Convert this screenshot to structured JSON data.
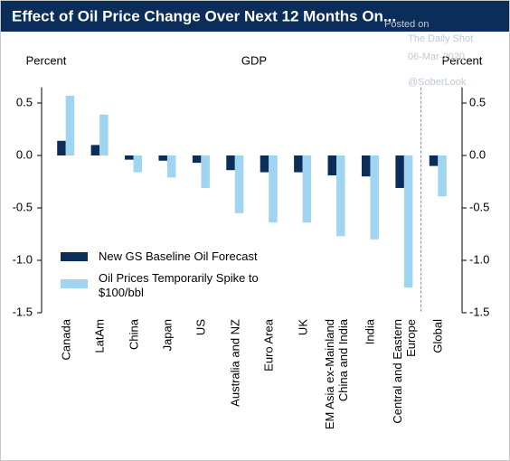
{
  "chart_data": {
    "type": "bar",
    "title": "Effect of Oil Price Change Over Next 12 Months On...",
    "watermark": [
      "Posted on",
      "The Daily Shot",
      "06-Mar-2020",
      "@SoberLook"
    ],
    "x_label": "GDP",
    "y_label": "Percent",
    "y2_label": "Percent",
    "categories": [
      "Canada",
      "LatAm",
      "China",
      "Japan",
      "US",
      "Australia and NZ",
      "Euro Area",
      "UK",
      "EM Asia ex-Mainland China and India",
      "India",
      "Central and Eastern Europe",
      "Global"
    ],
    "series": [
      {
        "name": "New GS Baseline Oil Forecast",
        "color": "#0b2d5a",
        "values": [
          0.14,
          0.1,
          -0.04,
          -0.05,
          -0.07,
          -0.14,
          -0.16,
          -0.16,
          -0.19,
          -0.2,
          -0.31,
          -0.1
        ]
      },
      {
        "name": "Oil Prices Temporarily Spike to $100/bbl",
        "color": "#9fd5f1",
        "values": [
          0.57,
          0.39,
          -0.16,
          -0.21,
          -0.31,
          -0.55,
          -0.64,
          -0.64,
          -0.77,
          -0.8,
          -1.26,
          -0.39
        ]
      }
    ],
    "ylim": [
      -1.5,
      0.65
    ],
    "yticks": [
      0.5,
      {
        "value": 0,
        "label": "0.0"
      },
      -0.5,
      {
        "value": -1,
        "label": "-1.0"
      },
      -1.5
    ],
    "legend": "lower left"
  }
}
